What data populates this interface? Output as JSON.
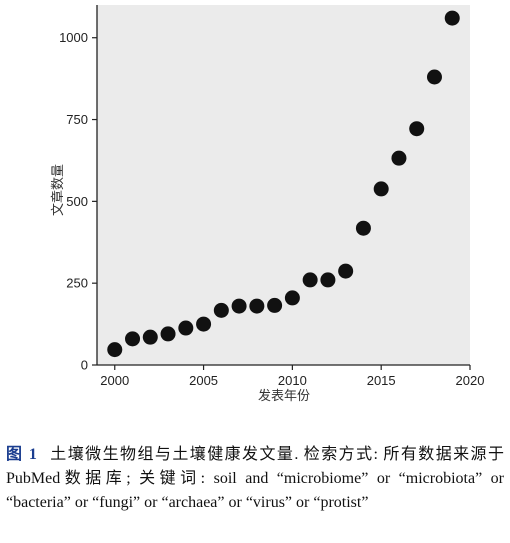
{
  "chart_data": {
    "type": "scatter",
    "xlabel": "发表年份",
    "ylabel": "文章数量",
    "xlim": [
      1999,
      2020
    ],
    "ylim": [
      0,
      1100
    ],
    "x_ticks": [
      2000,
      2005,
      2010,
      2015,
      2020
    ],
    "y_ticks": [
      0,
      250,
      500,
      750,
      1000
    ],
    "grid": false,
    "series": [
      {
        "x": [
          2000,
          2001,
          2002,
          2003,
          2004,
          2005,
          2006,
          2007,
          2008,
          2009,
          2010,
          2011,
          2012,
          2013,
          2014,
          2015,
          2016,
          2017,
          2018,
          2019
        ],
        "y": [
          47,
          80,
          85,
          95,
          113,
          125,
          167,
          180,
          180,
          182,
          205,
          260,
          260,
          287,
          418,
          538,
          632,
          722,
          880,
          1060
        ]
      }
    ],
    "marker_color": "#111111"
  },
  "caption": {
    "figure_number": "图 1",
    "text": "土壤微生物组与土壤健康发文量. 检索方式: 所有数据来源于PubMed数据库; 关键词: soil and “microbiome” or “microbiota” or “bacteria” or “fungi” or “archaea” or “virus” or “protist”"
  }
}
